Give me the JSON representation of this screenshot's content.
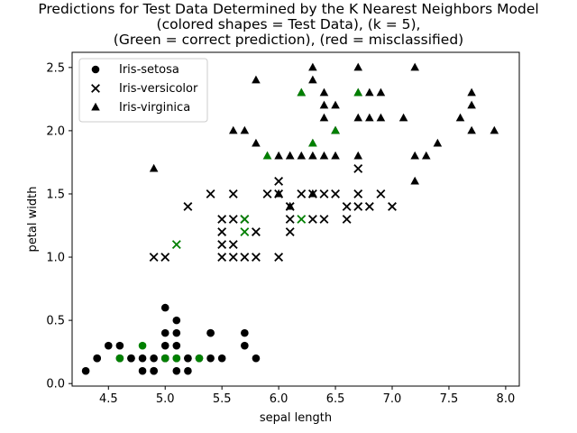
{
  "chart_data": {
    "type": "scatter",
    "title_lines": [
      "Predictions for Test Data Determined by the K Nearest Neighbors Model",
      "(colored shapes = Test Data), (k = 5),",
      "(Green = correct prediction), (red = misclassified)"
    ],
    "xlabel": "sepal length",
    "ylabel": "petal width",
    "xlim": [
      4.18,
      8.12
    ],
    "ylim": [
      -0.02,
      2.62
    ],
    "xticks": [
      "4.5",
      "5.0",
      "5.5",
      "6.0",
      "6.5",
      "7.0",
      "7.5",
      "8.0"
    ],
    "yticks": [
      "0.0",
      "0.5",
      "1.0",
      "1.5",
      "2.0",
      "2.5"
    ],
    "grid": false,
    "legend_position": "upper-left",
    "colors": {
      "train": "#000000",
      "correct": "#008000"
    },
    "series": [
      {
        "name": "Iris-setosa",
        "marker": "circle",
        "points": [
          [
            4.3,
            0.1
          ],
          [
            4.4,
            0.2
          ],
          [
            4.4,
            0.2
          ],
          [
            4.5,
            0.3
          ],
          [
            4.6,
            0.3
          ],
          [
            4.7,
            0.2
          ],
          [
            4.8,
            0.1
          ],
          [
            4.8,
            0.2
          ],
          [
            4.9,
            0.1
          ],
          [
            4.9,
            0.2
          ],
          [
            5.0,
            0.2
          ],
          [
            5.0,
            0.3
          ],
          [
            5.0,
            0.4
          ],
          [
            5.0,
            0.6
          ],
          [
            5.1,
            0.1
          ],
          [
            5.1,
            0.2
          ],
          [
            5.1,
            0.3
          ],
          [
            5.1,
            0.4
          ],
          [
            5.1,
            0.5
          ],
          [
            5.2,
            0.1
          ],
          [
            5.2,
            0.2
          ],
          [
            5.4,
            0.2
          ],
          [
            5.4,
            0.4
          ],
          [
            5.5,
            0.2
          ],
          [
            5.7,
            0.3
          ],
          [
            5.7,
            0.4
          ],
          [
            5.8,
            0.2
          ],
          [
            4.6,
            0.2
          ],
          [
            5.3,
            0.2
          ],
          [
            5.4,
            0.4
          ],
          [
            5.2,
            0.2
          ],
          [
            4.7,
            0.2
          ],
          [
            4.9,
            0.1
          ],
          [
            5.0,
            0.2
          ]
        ],
        "test_correct": [
          [
            4.6,
            0.2
          ],
          [
            4.8,
            0.3
          ],
          [
            5.0,
            0.2
          ],
          [
            5.1,
            0.2
          ],
          [
            5.3,
            0.2
          ]
        ]
      },
      {
        "name": "Iris-versicolor",
        "marker": "x",
        "points": [
          [
            4.9,
            1.0
          ],
          [
            5.0,
            1.0
          ],
          [
            5.2,
            1.4
          ],
          [
            5.4,
            1.5
          ],
          [
            5.5,
            1.0
          ],
          [
            5.5,
            1.1
          ],
          [
            5.5,
            1.2
          ],
          [
            5.5,
            1.3
          ],
          [
            5.6,
            1.0
          ],
          [
            5.6,
            1.1
          ],
          [
            5.6,
            1.3
          ],
          [
            5.6,
            1.5
          ],
          [
            5.7,
            1.0
          ],
          [
            5.7,
            1.3
          ],
          [
            5.8,
            1.0
          ],
          [
            5.8,
            1.2
          ],
          [
            5.9,
            1.5
          ],
          [
            6.0,
            1.0
          ],
          [
            6.0,
            1.5
          ],
          [
            6.0,
            1.6
          ],
          [
            6.1,
            1.2
          ],
          [
            6.1,
            1.3
          ],
          [
            6.1,
            1.4
          ],
          [
            6.2,
            1.5
          ],
          [
            6.3,
            1.3
          ],
          [
            6.3,
            1.5
          ],
          [
            6.4,
            1.3
          ],
          [
            6.4,
            1.5
          ],
          [
            6.5,
            1.5
          ],
          [
            6.6,
            1.3
          ],
          [
            6.6,
            1.4
          ],
          [
            6.7,
            1.4
          ],
          [
            6.7,
            1.5
          ],
          [
            6.7,
            1.7
          ],
          [
            6.8,
            1.4
          ],
          [
            6.9,
            1.5
          ],
          [
            7.0,
            1.4
          ]
        ],
        "test_correct": [
          [
            5.1,
            1.1
          ],
          [
            5.7,
            1.2
          ],
          [
            5.7,
            1.3
          ],
          [
            6.2,
            1.3
          ]
        ]
      },
      {
        "name": "Iris-virginica",
        "marker": "triangle",
        "points": [
          [
            4.9,
            1.7
          ],
          [
            5.6,
            2.0
          ],
          [
            5.7,
            2.0
          ],
          [
            5.8,
            1.9
          ],
          [
            5.8,
            2.4
          ],
          [
            5.9,
            1.8
          ],
          [
            6.0,
            1.8
          ],
          [
            6.1,
            1.8
          ],
          [
            6.2,
            1.8
          ],
          [
            6.3,
            1.8
          ],
          [
            6.3,
            1.5
          ],
          [
            6.3,
            2.4
          ],
          [
            6.3,
            2.5
          ],
          [
            6.4,
            1.8
          ],
          [
            6.4,
            2.1
          ],
          [
            6.4,
            2.2
          ],
          [
            6.4,
            2.3
          ],
          [
            6.5,
            1.8
          ],
          [
            6.5,
            2.0
          ],
          [
            6.5,
            2.2
          ],
          [
            6.7,
            1.8
          ],
          [
            6.7,
            2.1
          ],
          [
            6.7,
            2.3
          ],
          [
            6.7,
            2.5
          ],
          [
            6.8,
            2.1
          ],
          [
            6.8,
            2.3
          ],
          [
            6.9,
            2.1
          ],
          [
            6.9,
            2.3
          ],
          [
            7.1,
            2.1
          ],
          [
            7.2,
            1.6
          ],
          [
            7.2,
            1.8
          ],
          [
            7.2,
            2.5
          ],
          [
            7.3,
            1.8
          ],
          [
            7.4,
            1.9
          ],
          [
            7.6,
            2.1
          ],
          [
            7.7,
            2.0
          ],
          [
            7.7,
            2.2
          ],
          [
            7.7,
            2.3
          ],
          [
            7.9,
            2.0
          ],
          [
            6.1,
            1.4
          ],
          [
            6.2,
            2.3
          ],
          [
            6.3,
            1.9
          ],
          [
            6.5,
            2.0
          ],
          [
            6.0,
            1.5
          ],
          [
            6.1,
            1.8
          ]
        ],
        "test_correct": [
          [
            5.9,
            1.8
          ],
          [
            6.2,
            2.3
          ],
          [
            6.3,
            1.9
          ],
          [
            6.5,
            2.0
          ],
          [
            6.7,
            2.3
          ]
        ]
      }
    ]
  }
}
